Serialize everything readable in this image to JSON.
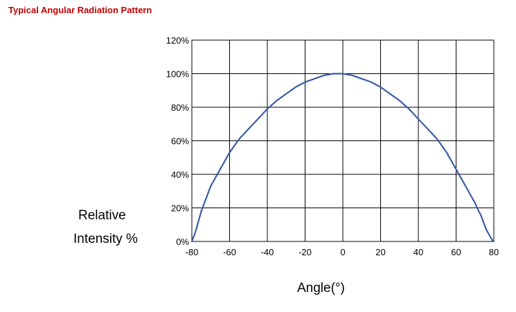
{
  "chart_data": {
    "type": "line",
    "title": "Typical Angular Radiation Pattern",
    "xlabel": "Angle(°)",
    "ylabel_lines": [
      "Relative",
      "Intensity %"
    ],
    "xlim": [
      -80,
      80
    ],
    "ylim": [
      0,
      120
    ],
    "xticks": [
      -80,
      -60,
      -40,
      -20,
      0,
      20,
      40,
      60,
      80
    ],
    "yticks": [
      0,
      20,
      40,
      60,
      80,
      100,
      120
    ],
    "ytick_labels": [
      "0%",
      "20%",
      "40%",
      "60%",
      "80%",
      "100%",
      "120%"
    ],
    "grid": true,
    "line_color": "#3b5ba5",
    "series": [
      {
        "x": [
          -80,
          -79,
          -78,
          -77,
          -76,
          -75,
          -74,
          -73,
          -72,
          -70,
          -65,
          -60,
          -55,
          -50,
          -45,
          -40,
          -35,
          -30,
          -25,
          -20,
          -15,
          -10,
          -5,
          0,
          5,
          10,
          15,
          20,
          25,
          30,
          35,
          40,
          45,
          50,
          55,
          60,
          65,
          70,
          72,
          73,
          74,
          75,
          76,
          77,
          78,
          79,
          80
        ],
        "y": [
          0,
          3,
          6,
          10,
          14,
          18,
          21,
          24,
          27,
          33,
          43,
          53,
          61,
          67,
          73,
          79,
          84,
          88,
          92,
          95,
          97,
          99,
          100,
          100,
          99,
          97,
          95,
          92,
          88,
          84,
          79,
          73,
          67,
          61,
          53,
          43,
          33,
          23,
          18,
          16,
          13,
          10,
          7,
          5,
          3,
          1,
          0
        ]
      }
    ]
  }
}
